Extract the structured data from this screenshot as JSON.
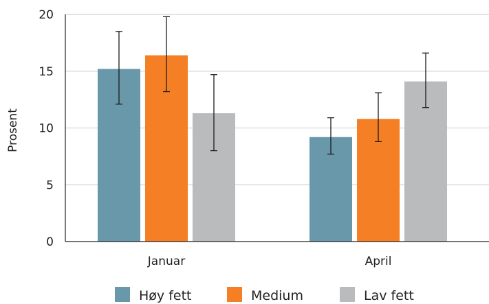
{
  "chart_data": {
    "type": "bar",
    "categories": [
      "Januar",
      "April"
    ],
    "series": [
      {
        "name": "Høy fett",
        "values": [
          15.2,
          9.2
        ],
        "err_low": [
          12.1,
          7.7
        ],
        "err_high": [
          18.5,
          10.9
        ],
        "color": "#6898a9"
      },
      {
        "name": "Medium",
        "values": [
          16.4,
          10.8
        ],
        "err_low": [
          13.2,
          8.8
        ],
        "err_high": [
          19.8,
          13.1
        ],
        "color": "#f47f24"
      },
      {
        "name": "Lav fett",
        "values": [
          11.3,
          14.1
        ],
        "err_low": [
          8.0,
          11.8
        ],
        "err_high": [
          14.7,
          16.6
        ],
        "color": "#b9bbbc"
      }
    ],
    "ylabel": "Prosent",
    "xlabel": "",
    "ylim": [
      0,
      20
    ],
    "yticks": [
      0,
      5,
      10,
      15,
      20
    ],
    "grid": true,
    "legend_position": "bottom"
  }
}
